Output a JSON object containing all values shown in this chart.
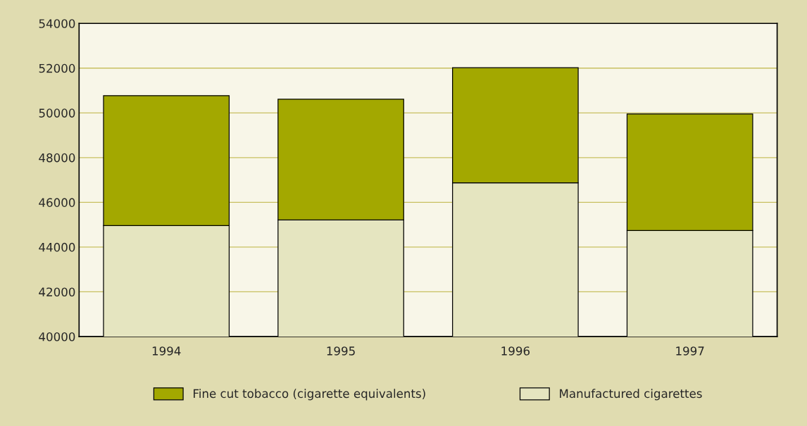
{
  "chart_data": {
    "type": "bar",
    "stacked": true,
    "categories": [
      "1994",
      "1995",
      "1996",
      "1997"
    ],
    "series": [
      {
        "name": "Manufactured cigarettes",
        "color": "#e5e5c0",
        "values": [
          44960,
          45210,
          46870,
          44740
        ]
      },
      {
        "name": "Fine cut tobacco (cigarette equivalents)",
        "color": "#a3a800",
        "base": [
          44960,
          45210,
          46870,
          44740
        ],
        "values": [
          5810,
          5400,
          5150,
          5210
        ]
      }
    ],
    "ylim": [
      40000,
      54000
    ],
    "yticks": [
      40000,
      42000,
      44000,
      46000,
      48000,
      50000,
      52000,
      54000
    ],
    "grid": "y",
    "legend": "bottom"
  }
}
